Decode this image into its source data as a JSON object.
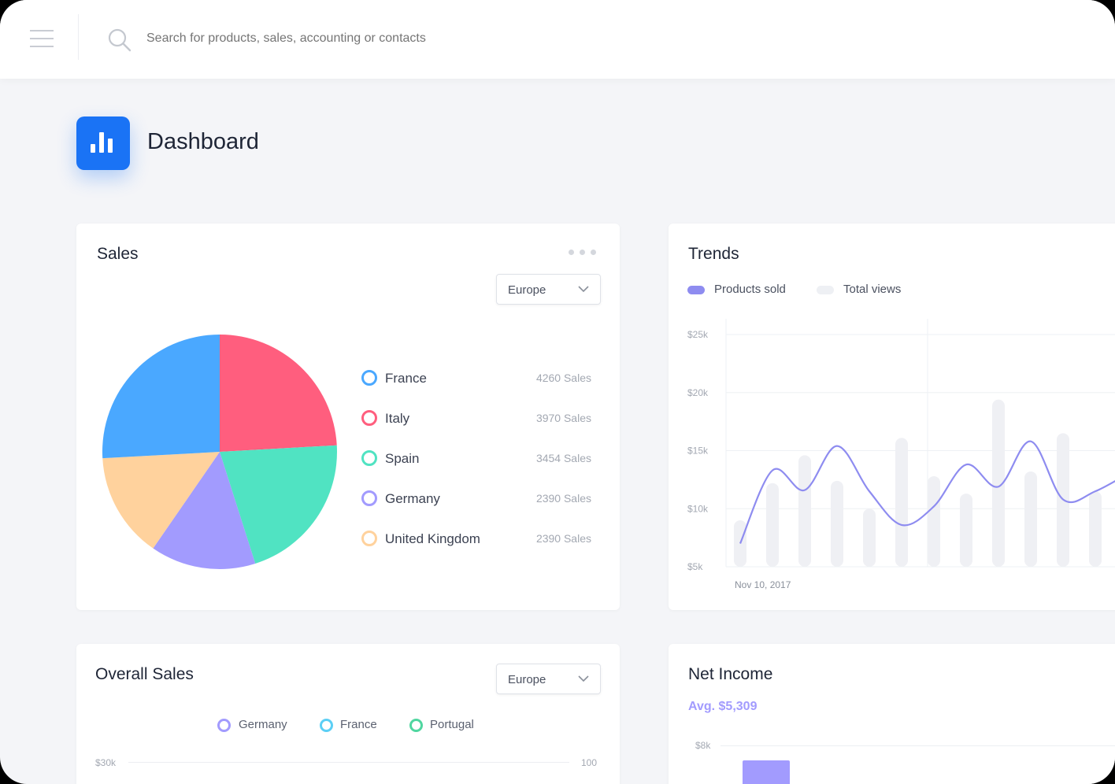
{
  "topbar": {
    "search_placeholder": "Search for products, sales, accounting or contacts",
    "icons": [
      "menu-icon",
      "search-icon"
    ]
  },
  "page": {
    "title": "Dashboard",
    "icon": "bar-chart-icon",
    "accent": "#1a73f5"
  },
  "sales": {
    "title": "Sales",
    "region": "Europe",
    "items": [
      {
        "name": "France",
        "value": 4260,
        "label": "4260 Sales",
        "color": "#4aa8ff"
      },
      {
        "name": "Italy",
        "value": 3970,
        "label": "3970 Sales",
        "color": "#ff5e7e"
      },
      {
        "name": "Spain",
        "value": 3454,
        "label": "3454 Sales",
        "color": "#50e3c2"
      },
      {
        "name": "Germany",
        "value": 2390,
        "label": "2390 Sales",
        "color": "#a29bfe"
      },
      {
        "name": "United Kingdom",
        "value": 2390,
        "label": "2390 Sales",
        "color": "#ffd29d"
      }
    ]
  },
  "trends": {
    "title": "Trends",
    "legend": [
      {
        "name": "Products sold",
        "color": "#8e8cf0"
      },
      {
        "name": "Total views",
        "color": "#eef0f4"
      }
    ],
    "chart_data": {
      "type": "bar+line",
      "ylim": [
        5,
        25
      ],
      "yticks": [
        "$5k",
        "$10k",
        "$15k",
        "$20k",
        "$25k"
      ],
      "ytick_values": [
        5,
        10,
        15,
        20,
        25
      ],
      "x_label_first": "Nov 10, 2017",
      "total_views": [
        9,
        12.2,
        14.6,
        12.4,
        10,
        16.1,
        12.8,
        11.3,
        19.4,
        13.2,
        16.5,
        11.5
      ],
      "products_sold": [
        7,
        13.3,
        11.6,
        15.4,
        11.5,
        8.6,
        10.2,
        13.8,
        11.9,
        15.8,
        10.8,
        11.5,
        13
      ]
    }
  },
  "overall": {
    "title": "Overall Sales",
    "region": "Europe",
    "legend": [
      {
        "name": "Germany",
        "color": "#a29bfe"
      },
      {
        "name": "France",
        "color": "#5ccff5"
      },
      {
        "name": "Portugal",
        "color": "#50d6a0"
      }
    ],
    "y_left": "$30k",
    "y_right": "100"
  },
  "net": {
    "title": "Net Income",
    "avg": "Avg. $5,309",
    "avg_color": "#a29bfe",
    "y_tick": "$8k"
  }
}
